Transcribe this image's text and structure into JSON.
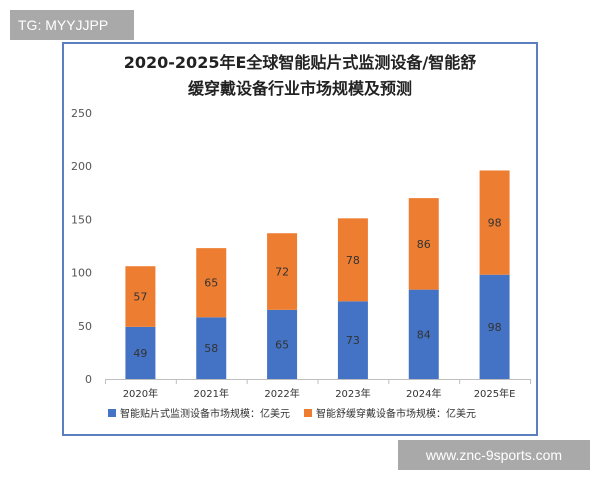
{
  "watermark_top": "TG: MYYJJPP",
  "watermark_bottom": "www.znc-9sports.com",
  "colors": {
    "series1": "#4472c4",
    "series2": "#ed7d31",
    "frame": "#5b7fbf",
    "axis": "#bfbfbf"
  },
  "chart_data": {
    "type": "bar",
    "stacked": true,
    "title_line1": "2020-2025年E全球智能贴片式监测设备/智能舒",
    "title_line2": "缓穿戴设备行业市场规模及预测",
    "categories": [
      "2020年",
      "2021年",
      "2022年",
      "2023年",
      "2024年",
      "2025年E"
    ],
    "series": [
      {
        "name": "智能贴片式监测设备市场规模：亿美元",
        "values": [
          49,
          58,
          65,
          73,
          84,
          98
        ]
      },
      {
        "name": "智能舒缓穿戴设备市场规模：亿美元",
        "values": [
          57,
          65,
          72,
          78,
          86,
          98
        ]
      }
    ],
    "ylim": [
      0,
      250
    ],
    "yticks": [
      0,
      50,
      100,
      150,
      200,
      250
    ],
    "legend_position": "bottom",
    "grid": false
  }
}
